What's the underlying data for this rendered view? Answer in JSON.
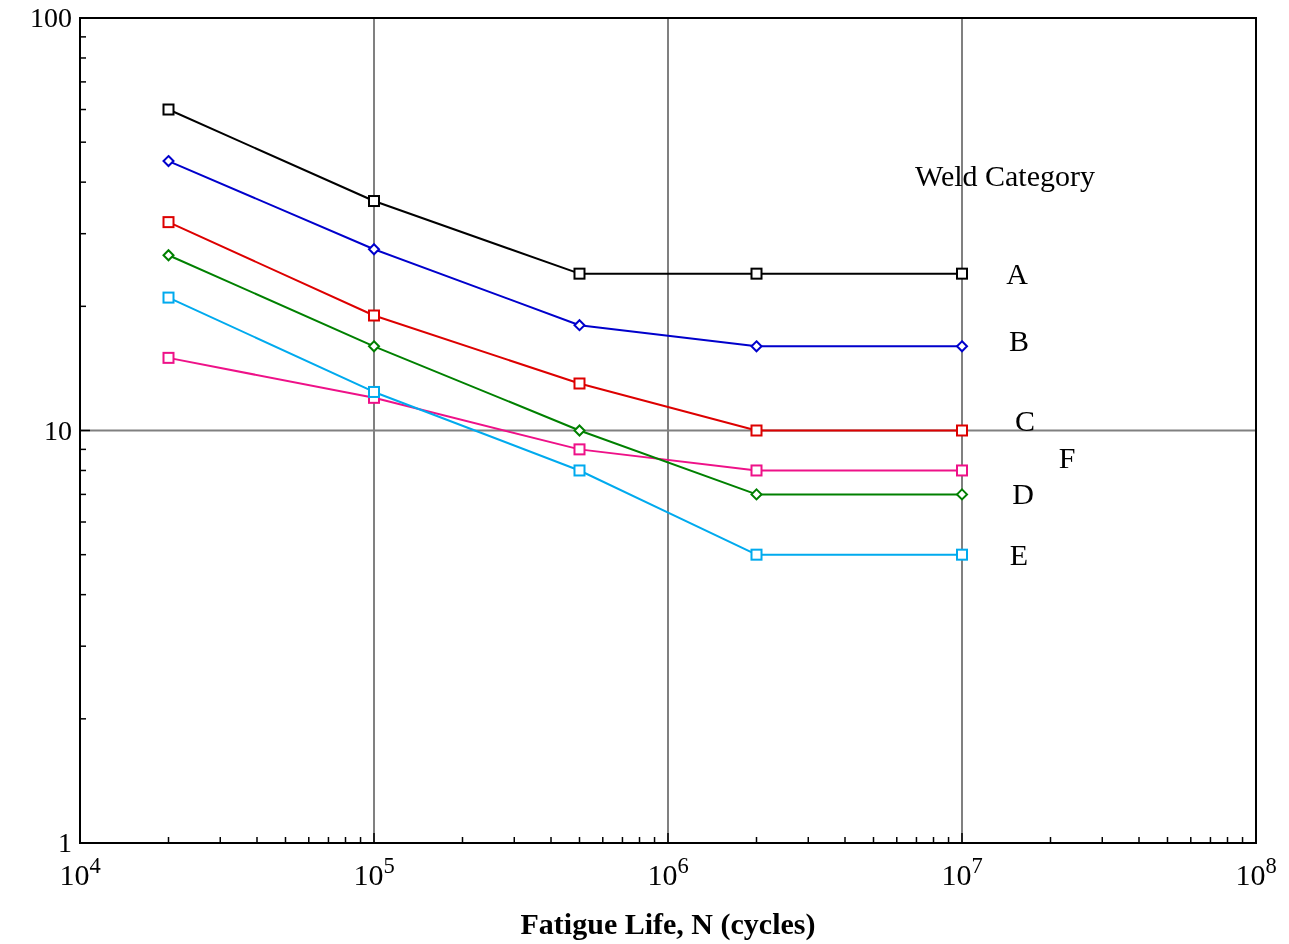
{
  "chart_data": {
    "type": "line",
    "xlabel": "Fatigue Life, N (cycles)",
    "legend_title": "Weld Category",
    "log": "xy",
    "grid": true,
    "x": [
      20000,
      100000,
      500000,
      2000000,
      10000000
    ],
    "xlim": [
      10000,
      100000000
    ],
    "xticks": [
      {
        "value": 10000,
        "label": "10$^{4}$"
      },
      {
        "value": 20000,
        "label": null
      },
      {
        "value": 30000,
        "label": null
      },
      {
        "value": 40000,
        "label": null
      },
      {
        "value": 50000,
        "label": null
      },
      {
        "value": 60000,
        "label": null
      },
      {
        "value": 70000,
        "label": null
      },
      {
        "value": 80000,
        "label": null
      },
      {
        "value": 90000,
        "label": null
      },
      {
        "value": 100000,
        "label": "10$^{5}$"
      },
      {
        "value": 200000,
        "label": null
      },
      {
        "value": 300000,
        "label": null
      },
      {
        "value": 400000,
        "label": null
      },
      {
        "value": 500000,
        "label": null
      },
      {
        "value": 600000,
        "label": null
      },
      {
        "value": 700000,
        "label": null
      },
      {
        "value": 800000,
        "label": null
      },
      {
        "value": 900000,
        "label": null
      },
      {
        "value": 1000000,
        "label": "10$^{6}$"
      },
      {
        "value": 2000000,
        "label": null
      },
      {
        "value": 3000000,
        "label": null
      },
      {
        "value": 4000000,
        "label": null
      },
      {
        "value": 5000000,
        "label": null
      },
      {
        "value": 6000000,
        "label": null
      },
      {
        "value": 7000000,
        "label": null
      },
      {
        "value": 8000000,
        "label": null
      },
      {
        "value": 9000000,
        "label": null
      },
      {
        "value": 10000000,
        "label": "10$^{7}$"
      },
      {
        "value": 20000000,
        "label": null
      },
      {
        "value": 30000000,
        "label": null
      },
      {
        "value": 40000000,
        "label": null
      },
      {
        "value": 50000000,
        "label": null
      },
      {
        "value": 60000000,
        "label": null
      },
      {
        "value": 70000000,
        "label": null
      },
      {
        "value": 80000000,
        "label": null
      },
      {
        "value": 90000000,
        "label": null
      },
      {
        "value": 100000000,
        "label": "10$^{8}$"
      }
    ],
    "ylim": [
      1,
      100
    ],
    "yticks": [
      1,
      {
        "value": 2,
        "label": null
      },
      {
        "value": 3,
        "label": null
      },
      {
        "value": 4,
        "label": null
      },
      {
        "value": 5,
        "label": null
      },
      {
        "value": 6,
        "label": null
      },
      {
        "value": 7,
        "label": null
      },
      {
        "value": 8,
        "label": null
      },
      {
        "value": 9,
        "label": null
      },
      10,
      {
        "value": 20,
        "label": null
      },
      {
        "value": 30,
        "label": null
      },
      {
        "value": 40,
        "label": null
      },
      {
        "value": 50,
        "label": null
      },
      {
        "value": 60,
        "label": null
      },
      {
        "value": 70,
        "label": null
      },
      {
        "value": 80,
        "label": null
      },
      {
        "value": 90,
        "label": null
      },
      100
    ],
    "series": [
      {
        "name": "A",
        "color": "#000000",
        "marker": "square",
        "values": [
          60,
          36,
          24,
          24,
          24
        ]
      },
      {
        "name": "B",
        "color": "#0000cc",
        "marker": "diamond",
        "values": [
          45,
          27.5,
          18,
          16,
          16
        ]
      },
      {
        "name": "C",
        "color": "#dd0000",
        "marker": "square",
        "values": [
          32,
          19,
          13,
          10,
          10
        ]
      },
      {
        "name": "D",
        "color": "#008000",
        "marker": "diamond",
        "values": [
          26.6,
          16,
          10,
          7,
          7
        ]
      },
      {
        "name": "E",
        "color": "#00aaee",
        "marker": "square",
        "values": [
          21,
          12.4,
          8,
          5,
          5
        ]
      },
      {
        "name": "F",
        "color": "#ee1188",
        "marker": "square",
        "values": [
          15,
          12,
          9,
          8,
          8
        ]
      }
    ]
  }
}
